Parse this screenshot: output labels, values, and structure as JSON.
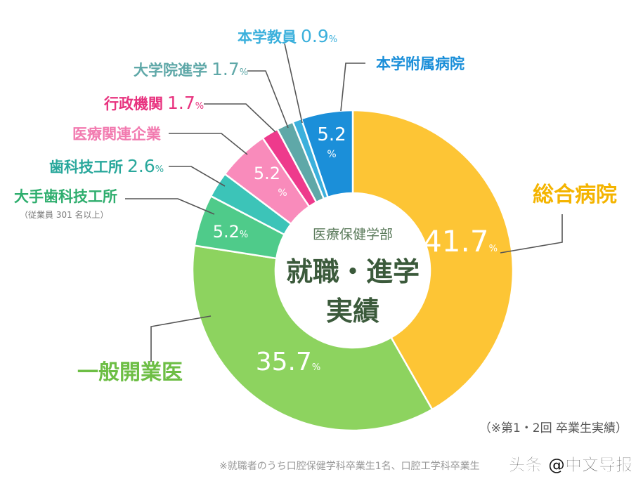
{
  "chart_data": {
    "type": "donut",
    "center_subtitle": "医療保健学部",
    "center_title_line1": "就職・進学",
    "center_title_line2": "実績",
    "unit": "%",
    "slices": [
      {
        "label": "総合病院",
        "value": 41.7,
        "color": "#FDC535",
        "label_color": "#F4B400"
      },
      {
        "label": "一般開業医",
        "value": 35.7,
        "color": "#8DD35F",
        "label_color": "#6DBE45"
      },
      {
        "label": "大手歯科技工所",
        "note": "（従業員 301 名以上）",
        "value": 5.2,
        "color": "#4FCB8A",
        "label_color": "#2FAE6E"
      },
      {
        "label": "歯科技工所",
        "value": 2.6,
        "color": "#3CC4B8",
        "label_color": "#2AA89C"
      },
      {
        "label": "医療関連企業",
        "value": 5.2,
        "color": "#F98BBB",
        "label_color": "#F27BB0"
      },
      {
        "label": "行政機関",
        "value": 1.7,
        "color": "#EE3A8C",
        "label_color": "#E8337F"
      },
      {
        "label": "大学院進学",
        "value": 1.7,
        "color": "#5FA8A8",
        "label_color": "#5FA8A8"
      },
      {
        "label": "本学教員",
        "value": 0.9,
        "color": "#3BB0DC",
        "label_color": "#3BB0DC"
      },
      {
        "label": "本学附属病院",
        "value": 5.2,
        "color": "#1B8FD9",
        "label_color": "#1B8FD9"
      }
    ],
    "value_strings": [
      "41.7",
      "35.7",
      "5.2",
      "2.6",
      "5.2",
      "1.7",
      "1.7",
      "0.9",
      "5.2"
    ]
  },
  "footnote_right": "（※第1・2回 卒業生実績）",
  "footnote_bottom": "※就職者のうち口腔保健学科卒業生1名、口腔工学科卒業生",
  "watermark": "头条 @中文导报"
}
